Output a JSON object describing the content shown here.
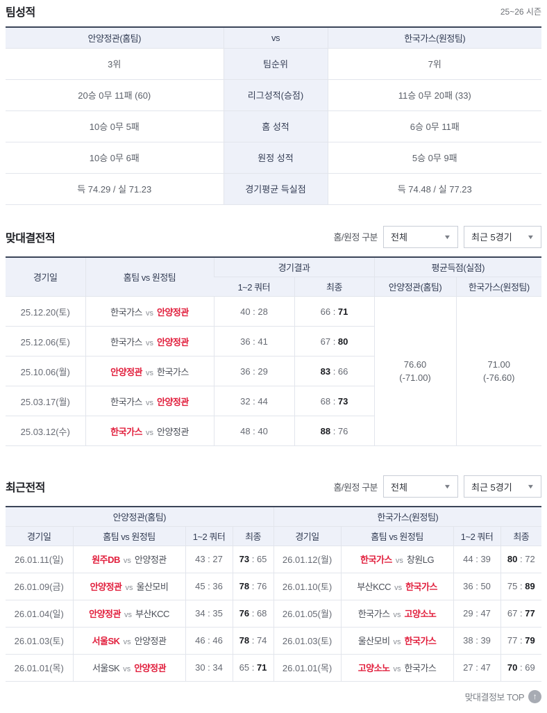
{
  "season_label": "25~26 시즌",
  "vs_small": "vs",
  "filters": {
    "label": "홈/원정 구분",
    "scope_value": "전체",
    "range_value": "최근 5경기"
  },
  "team_stats": {
    "title": "팀성적",
    "home_header": "안양정관(홈팀)",
    "vs_label": "vs",
    "away_header": "한국가스(원정팀)",
    "rows": [
      {
        "home": "3위",
        "label": "팀순위",
        "away": "7위"
      },
      {
        "home": "20승 0무 11패 (60)",
        "label": "리그성적(승점)",
        "away": "11승 0무 20패 (33)"
      },
      {
        "home": "10승 0무 5패",
        "label": "홈 성적",
        "away": "6승 0무 11패"
      },
      {
        "home": "10승 0무 6패",
        "label": "원정 성적",
        "away": "5승 0무 9패"
      },
      {
        "home": "득 74.29 / 실 71.23",
        "label": "경기평균 득실점",
        "away": "득 74.48 / 실 77.23"
      }
    ]
  },
  "head_to_head": {
    "title": "맞대결전적",
    "col_date": "경기일",
    "col_matchup": "홈팀 vs 원정팀",
    "col_result": "경기결과",
    "col_avg": "평균득점(실점)",
    "col_quarter": "1~2 쿼터",
    "col_final": "최종",
    "col_avg_home": "안양정관(홈팀)",
    "col_avg_away": "한국가스(원정팀)",
    "avg_home": "76.60",
    "avg_home_note": "(-71.00)",
    "avg_away": "71.00",
    "avg_away_note": "(-76.60)",
    "rows": [
      {
        "date": "25.12.20(토)",
        "home": "한국가스",
        "away": "안양정관",
        "winner": "away",
        "q_home": "40",
        "q_away": "28",
        "f_home": "66",
        "f_away": "71"
      },
      {
        "date": "25.12.06(토)",
        "home": "한국가스",
        "away": "안양정관",
        "winner": "away",
        "q_home": "36",
        "q_away": "41",
        "f_home": "67",
        "f_away": "80"
      },
      {
        "date": "25.10.06(월)",
        "home": "안양정관",
        "away": "한국가스",
        "winner": "home",
        "q_home": "36",
        "q_away": "29",
        "f_home": "83",
        "f_away": "66"
      },
      {
        "date": "25.03.17(월)",
        "home": "한국가스",
        "away": "안양정관",
        "winner": "away",
        "q_home": "32",
        "q_away": "44",
        "f_home": "68",
        "f_away": "73"
      },
      {
        "date": "25.03.12(수)",
        "home": "한국가스",
        "away": "안양정관",
        "winner": "home",
        "q_home": "48",
        "q_away": "40",
        "f_home": "88",
        "f_away": "76"
      }
    ]
  },
  "recent": {
    "title": "최근전적",
    "home_team_header": "안양정관(홈팀)",
    "away_team_header": "한국가스(원정팀)",
    "col_date": "경기일",
    "col_matchup": "홈팀 vs 원정팀",
    "col_quarter": "1~2 쿼터",
    "col_final": "최종",
    "home_games": [
      {
        "date": "26.01.11(일)",
        "home": "원주DB",
        "away": "안양정관",
        "winner": "home",
        "q_home": "43",
        "q_away": "27",
        "f_home": "73",
        "f_away": "65"
      },
      {
        "date": "26.01.09(금)",
        "home": "안양정관",
        "away": "울산모비",
        "winner": "home",
        "q_home": "45",
        "q_away": "36",
        "f_home": "78",
        "f_away": "76"
      },
      {
        "date": "26.01.04(일)",
        "home": "안양정관",
        "away": "부산KCC",
        "winner": "home",
        "q_home": "34",
        "q_away": "35",
        "f_home": "76",
        "f_away": "68"
      },
      {
        "date": "26.01.03(토)",
        "home": "서울SK",
        "away": "안양정관",
        "winner": "home",
        "q_home": "46",
        "q_away": "46",
        "f_home": "78",
        "f_away": "74"
      },
      {
        "date": "26.01.01(목)",
        "home": "서울SK",
        "away": "안양정관",
        "winner": "away",
        "q_home": "30",
        "q_away": "34",
        "f_home": "65",
        "f_away": "71"
      }
    ],
    "away_games": [
      {
        "date": "26.01.12(월)",
        "home": "한국가스",
        "away": "창원LG",
        "winner": "home",
        "q_home": "44",
        "q_away": "39",
        "f_home": "80",
        "f_away": "72"
      },
      {
        "date": "26.01.10(토)",
        "home": "부산KCC",
        "away": "한국가스",
        "winner": "away",
        "q_home": "36",
        "q_away": "50",
        "f_home": "75",
        "f_away": "89"
      },
      {
        "date": "26.01.05(월)",
        "home": "한국가스",
        "away": "고양소노",
        "winner": "away",
        "q_home": "29",
        "q_away": "47",
        "f_home": "67",
        "f_away": "77"
      },
      {
        "date": "26.01.03(토)",
        "home": "울산모비",
        "away": "한국가스",
        "winner": "away",
        "q_home": "38",
        "q_away": "39",
        "f_home": "77",
        "f_away": "79"
      },
      {
        "date": "26.01.01(목)",
        "home": "고양소노",
        "away": "한국가스",
        "winner": "home",
        "q_home": "27",
        "q_away": "47",
        "f_home": "70",
        "f_away": "69"
      }
    ]
  },
  "footer": {
    "top_label": "맞대결정보 TOP",
    "top_arrow": "↑"
  }
}
